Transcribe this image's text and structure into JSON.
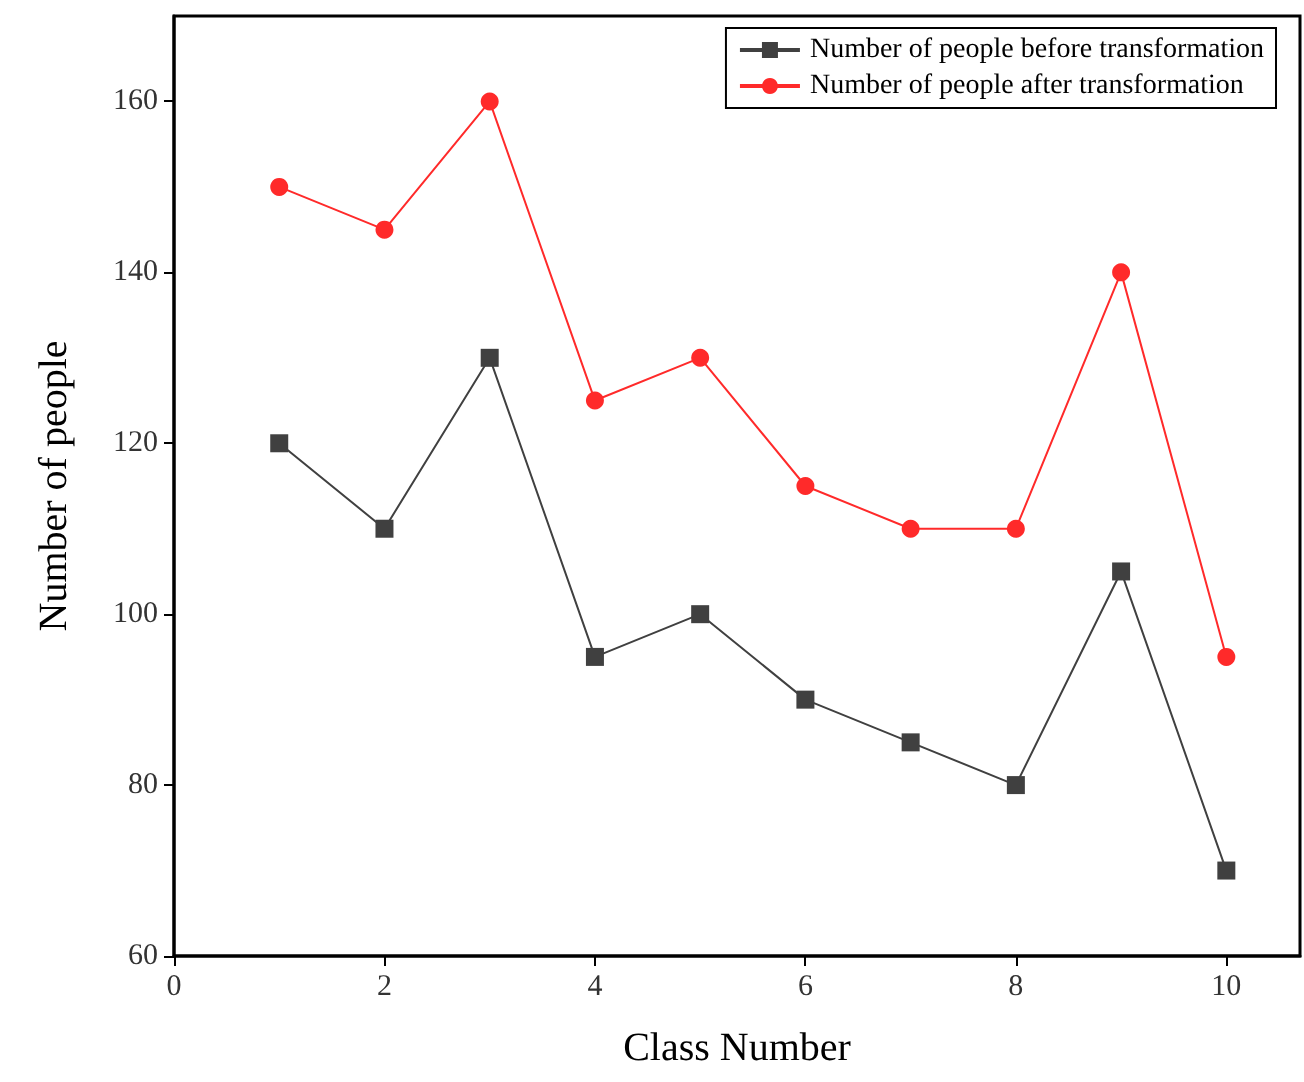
{
  "chart_data": {
    "type": "line",
    "xlabel": "Class Number",
    "ylabel": "Number of people",
    "x": [
      1,
      2,
      3,
      4,
      5,
      6,
      7,
      8,
      9,
      10
    ],
    "series": [
      {
        "name": "Number of people before transformation",
        "color": "#404040",
        "marker": "square",
        "values": [
          120,
          110,
          130,
          95,
          100,
          90,
          85,
          80,
          105,
          70
        ]
      },
      {
        "name": "Number of people after transformation",
        "color": "#ff2a2a",
        "marker": "circle",
        "values": [
          150,
          145,
          160,
          125,
          130,
          115,
          110,
          110,
          140,
          95
        ]
      }
    ],
    "xlim": [
      0,
      10.7
    ],
    "xticks": [
      0,
      2,
      4,
      6,
      8,
      10
    ],
    "ylim": [
      60,
      170
    ],
    "yticks": [
      60,
      80,
      100,
      120,
      140,
      160
    ],
    "grid": false,
    "legend": "top right",
    "line_style": "solid"
  }
}
